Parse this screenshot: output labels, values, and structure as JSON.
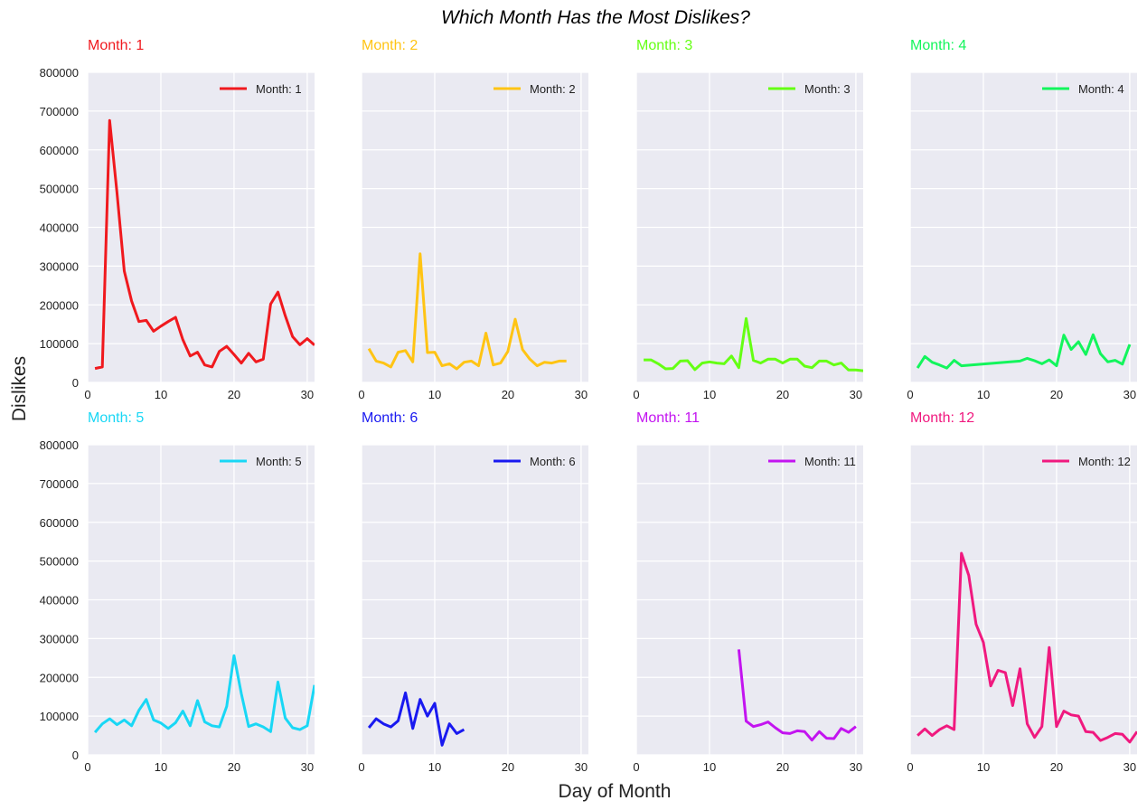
{
  "title": "Which Month Has the Most Dislikes?",
  "xlabel": "Day of Month",
  "ylabel": "Dislikes",
  "chart_data": {
    "type": "line",
    "title": "Which Month Has the Most Dislikes?",
    "xlabel": "Day of Month",
    "ylabel": "Dislikes",
    "xlim": [
      0,
      31
    ],
    "ylim": [
      0,
      800000
    ],
    "xticks": [
      "0",
      "10",
      "20",
      "30"
    ],
    "yticks": [
      "0",
      "100000",
      "200000",
      "300000",
      "400000",
      "500000",
      "600000",
      "700000",
      "800000"
    ],
    "grid": true,
    "legend_position": "top-right",
    "panels": [
      {
        "title": "Month: 1",
        "legend": "Month: 1",
        "color": "#f0191e",
        "x": [
          1,
          2,
          3,
          4,
          5,
          6,
          7,
          8,
          9,
          10,
          11,
          12,
          13,
          14,
          15,
          16,
          17,
          18,
          19,
          20,
          21,
          22,
          23,
          24,
          25,
          26,
          27,
          28,
          29,
          30,
          31
        ],
        "y": [
          36000,
          40000,
          676000,
          490000,
          287000,
          210000,
          157000,
          160000,
          132000,
          145000,
          157000,
          168000,
          110000,
          68000,
          78000,
          45000,
          40000,
          80000,
          93000,
          72000,
          50000,
          75000,
          53000,
          60000,
          202000,
          233000,
          172000,
          118000,
          97000,
          113000,
          96000
        ]
      },
      {
        "title": "Month: 2",
        "legend": "Month: 2",
        "color": "#ffc414",
        "x": [
          1,
          2,
          3,
          4,
          5,
          6,
          7,
          8,
          9,
          10,
          11,
          12,
          13,
          14,
          15,
          16,
          17,
          18,
          19,
          20,
          21,
          22,
          23,
          24,
          25,
          26,
          27,
          28
        ],
        "y": [
          87000,
          55000,
          50000,
          40000,
          78000,
          82000,
          53000,
          332000,
          77000,
          78000,
          43000,
          48000,
          35000,
          52000,
          55000,
          43000,
          127000,
          45000,
          50000,
          80000,
          163000,
          85000,
          60000,
          43000,
          52000,
          50000,
          55000,
          55000
        ]
      },
      {
        "title": "Month: 3",
        "legend": "Month: 3",
        "color": "#65ff14",
        "x": [
          1,
          2,
          3,
          4,
          5,
          6,
          7,
          8,
          9,
          10,
          11,
          12,
          13,
          14,
          15,
          16,
          17,
          18,
          19,
          20,
          21,
          22,
          23,
          24,
          25,
          26,
          27,
          28,
          29,
          30,
          31
        ],
        "y": [
          58000,
          58000,
          48000,
          35000,
          36000,
          55000,
          56000,
          33000,
          50000,
          53000,
          50000,
          48000,
          68000,
          38000,
          165000,
          57000,
          50000,
          60000,
          60000,
          50000,
          60000,
          60000,
          42000,
          38000,
          55000,
          55000,
          45000,
          50000,
          32000,
          32000,
          30000
        ]
      },
      {
        "title": "Month: 4",
        "legend": "Month: 4",
        "color": "#13f55c",
        "x": [
          1,
          2,
          3,
          4,
          5,
          6,
          7,
          15,
          16,
          17,
          18,
          19,
          20,
          21,
          22,
          23,
          24,
          25,
          26,
          27,
          28,
          29,
          30
        ],
        "y": [
          37000,
          67000,
          52000,
          45000,
          37000,
          57000,
          43000,
          55000,
          62000,
          56000,
          48000,
          58000,
          43000,
          122000,
          85000,
          105000,
          72000,
          123000,
          74000,
          53000,
          57000,
          47000,
          98000
        ]
      },
      {
        "title": "Month: 5",
        "legend": "Month: 5",
        "color": "#19d7f5",
        "x": [
          1,
          2,
          3,
          4,
          5,
          6,
          7,
          8,
          9,
          10,
          11,
          12,
          13,
          14,
          15,
          16,
          17,
          18,
          19,
          20,
          21,
          22,
          23,
          24,
          25,
          26,
          27,
          28,
          29,
          30,
          31
        ],
        "y": [
          58000,
          80000,
          93000,
          78000,
          90000,
          75000,
          115000,
          143000,
          90000,
          82000,
          68000,
          83000,
          113000,
          75000,
          140000,
          85000,
          75000,
          72000,
          125000,
          256000,
          158000,
          73000,
          80000,
          72000,
          60000,
          188000,
          95000,
          70000,
          65000,
          75000,
          180000
        ]
      },
      {
        "title": "Month: 6",
        "legend": "Month: 6",
        "color": "#1919f0",
        "x": [
          1,
          2,
          3,
          4,
          5,
          6,
          7,
          8,
          9,
          10,
          11,
          12,
          13,
          14
        ],
        "y": [
          70000,
          93000,
          80000,
          72000,
          88000,
          160000,
          68000,
          143000,
          100000,
          133000,
          25000,
          80000,
          55000,
          65000
        ]
      },
      {
        "title": "Month: 11",
        "legend": "Month: 11",
        "color": "#c314f0",
        "x": [
          14,
          15,
          16,
          17,
          18,
          19,
          20,
          21,
          22,
          23,
          24,
          25,
          26,
          27,
          28,
          29,
          30
        ],
        "y": [
          272000,
          87000,
          73000,
          78000,
          85000,
          70000,
          57000,
          55000,
          62000,
          60000,
          38000,
          60000,
          43000,
          42000,
          68000,
          58000,
          73000
        ]
      },
      {
        "title": "Month: 12",
        "legend": "Month: 12",
        "color": "#f0197f",
        "x": [
          1,
          2,
          3,
          4,
          5,
          6,
          7,
          8,
          9,
          10,
          11,
          12,
          13,
          14,
          15,
          16,
          17,
          18,
          19,
          20,
          21,
          22,
          23,
          24,
          25,
          26,
          27,
          28,
          29,
          30,
          31
        ],
        "y": [
          50000,
          67000,
          50000,
          65000,
          75000,
          65000,
          520000,
          463000,
          337000,
          290000,
          178000,
          218000,
          212000,
          127000,
          222000,
          80000,
          45000,
          73000,
          277000,
          73000,
          113000,
          103000,
          100000,
          60000,
          58000,
          37000,
          45000,
          55000,
          53000,
          33000,
          60000
        ]
      }
    ]
  }
}
